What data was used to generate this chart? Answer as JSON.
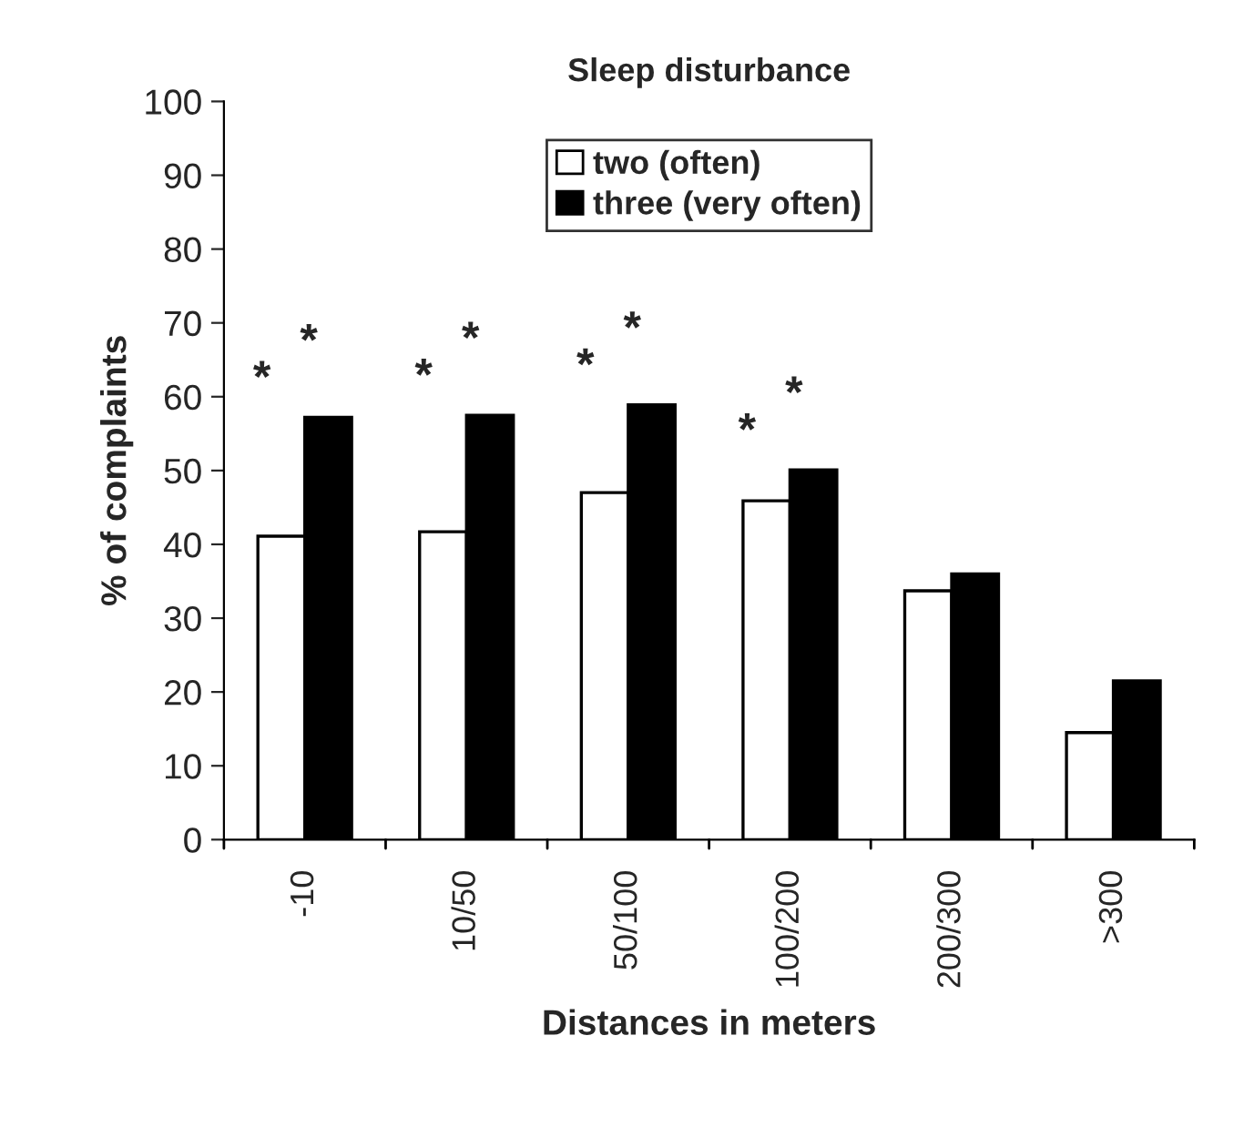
{
  "chart_data": {
    "type": "bar",
    "title": "Sleep disturbance",
    "xlabel": "Distances in meters",
    "ylabel": "% of complaints",
    "categories": [
      "-10",
      "10/50",
      "50/100",
      "100/200",
      "200/300",
      ">300"
    ],
    "series": [
      {
        "name": "two (often)",
        "color": "#ffffff",
        "values": [
          41.1,
          41.7,
          47.0,
          45.9,
          33.7,
          14.5
        ]
      },
      {
        "name": "three (very often)",
        "color": "#000000",
        "values": [
          57.2,
          57.5,
          58.9,
          50.1,
          36.0,
          21.5
        ]
      }
    ],
    "ylim": [
      0,
      100
    ],
    "yticks": [
      0,
      10,
      20,
      30,
      40,
      50,
      60,
      70,
      80,
      90,
      100
    ],
    "grid": false,
    "legend": "top",
    "annotations": [
      "*",
      "*",
      "*",
      "*",
      "*",
      "*",
      "*",
      "*"
    ]
  }
}
